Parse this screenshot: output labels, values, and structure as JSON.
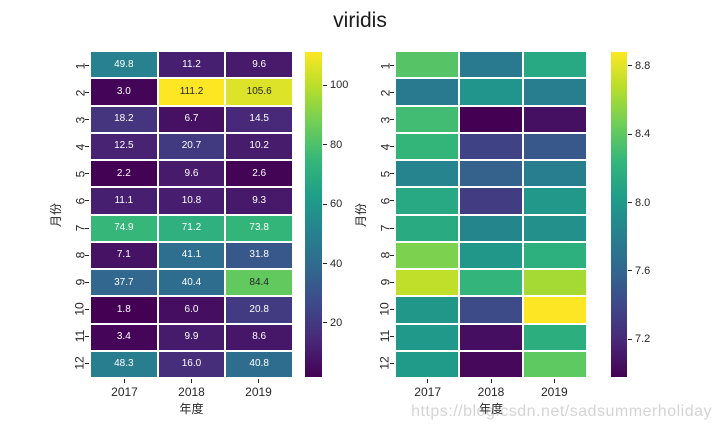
{
  "title": "viridis",
  "watermark": "https://blog.csdn.net/sadsummerholiday",
  "colormap_stops": [
    "#440154",
    "#482878",
    "#3e4989",
    "#31688e",
    "#26828e",
    "#1f9e89",
    "#35b779",
    "#6ece58",
    "#b5de2b",
    "#fde725"
  ],
  "text_colors": {
    "axis": "#262626",
    "annotation_dark": "#262626",
    "annotation_light": "#ffffff",
    "watermark": "#d4d4d4"
  },
  "chart_data": [
    {
      "type": "heatmap",
      "name": "annotated-heatmap",
      "colormap": "viridis",
      "xlabel": "年度",
      "ylabel": "月份",
      "x": [
        "2017",
        "2018",
        "2019"
      ],
      "y": [
        "1",
        "2",
        "3",
        "4",
        "5",
        "6",
        "7",
        "8",
        "9",
        "10",
        "11",
        "12"
      ],
      "values": [
        [
          49.8,
          11.2,
          9.6
        ],
        [
          3.0,
          111.2,
          105.6
        ],
        [
          18.2,
          6.7,
          14.5
        ],
        [
          12.5,
          20.7,
          10.2
        ],
        [
          2.2,
          9.6,
          2.6
        ],
        [
          11.1,
          10.8,
          9.3
        ],
        [
          74.9,
          71.2,
          73.8
        ],
        [
          7.1,
          41.1,
          31.8
        ],
        [
          37.7,
          40.4,
          84.4
        ],
        [
          1.8,
          6.0,
          20.8
        ],
        [
          3.4,
          9.9,
          8.6
        ],
        [
          48.3,
          16.0,
          40.8
        ]
      ],
      "vmin": 1.8,
      "vmax": 111.2,
      "annotated": true,
      "colorbar_ticks": [
        {
          "value": 20,
          "label": "20"
        },
        {
          "value": 40,
          "label": "40"
        },
        {
          "value": 60,
          "label": "60"
        },
        {
          "value": 80,
          "label": "80"
        },
        {
          "value": 100,
          "label": "100"
        }
      ]
    },
    {
      "type": "heatmap",
      "name": "plain-heatmap",
      "colormap": "viridis",
      "xlabel": "年度",
      "ylabel": "月份",
      "x": [
        "2017",
        "2018",
        "2019"
      ],
      "y": [
        "1",
        "2",
        "3",
        "4",
        "5",
        "6",
        "7",
        "8",
        "9",
        "10",
        "11",
        "12"
      ],
      "values": [
        [
          8.37,
          7.76,
          8.12
        ],
        [
          7.76,
          7.97,
          7.78
        ],
        [
          8.29,
          6.98,
          7.06
        ],
        [
          8.23,
          7.36,
          7.5
        ],
        [
          7.84,
          7.57,
          7.78
        ],
        [
          8.12,
          7.32,
          7.99
        ],
        [
          8.14,
          7.85,
          7.93
        ],
        [
          8.5,
          7.98,
          8.18
        ],
        [
          8.7,
          8.22,
          8.62
        ],
        [
          7.98,
          7.42,
          8.88
        ],
        [
          8.0,
          7.05,
          8.17
        ],
        [
          8.01,
          7.02,
          8.4
        ]
      ],
      "vmin": 6.98,
      "vmax": 8.88,
      "annotated": false,
      "colorbar_ticks": [
        {
          "value": 7.2,
          "label": "7.2"
        },
        {
          "value": 7.6,
          "label": "7.6"
        },
        {
          "value": 8.0,
          "label": "8.0"
        },
        {
          "value": 8.4,
          "label": "8.4"
        },
        {
          "value": 8.8,
          "label": "8.8"
        }
      ]
    }
  ]
}
